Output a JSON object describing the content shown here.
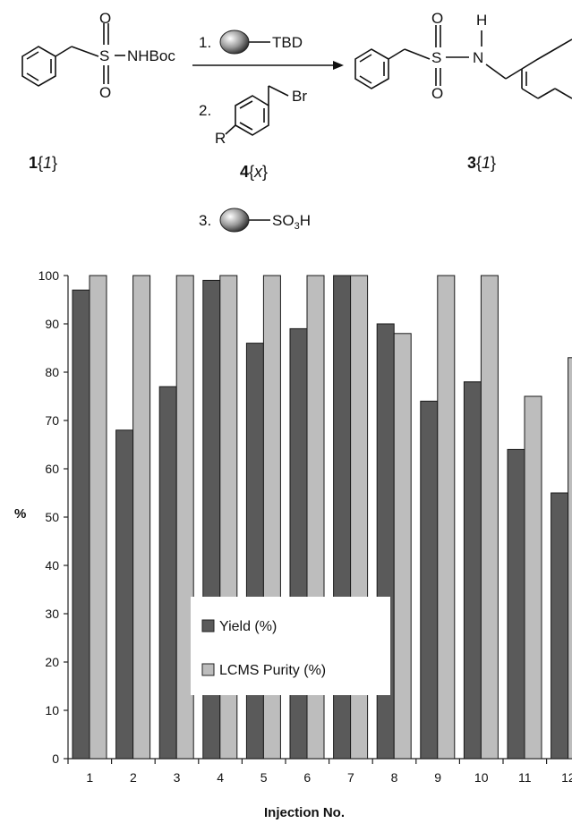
{
  "scheme": {
    "reactant_substituent": "NHBoc",
    "reactant_id_bold": "1",
    "reactant_id_italic": "1",
    "step1_number": "1.",
    "step1_reagent": "TBD",
    "step2_number": "2.",
    "step2_br": "Br",
    "step2_r": "R",
    "step2_id_bold": "4",
    "step2_id_italic": "x",
    "step3_number": "3.",
    "step3_reagent_main": "SO",
    "step3_reagent_sub": "3",
    "step3_reagent_end": "H",
    "product_id_bold": "3",
    "product_id_italic": "1",
    "atom_S": "S",
    "atom_O": "O",
    "atom_N": "N",
    "atom_H": "H"
  },
  "chart_data": {
    "type": "bar",
    "title": "",
    "xlabel": "Injection No.",
    "ylabel": "%",
    "ylim": [
      0,
      100
    ],
    "yticks": [
      0,
      10,
      20,
      30,
      40,
      50,
      60,
      70,
      80,
      90,
      100
    ],
    "categories": [
      "1",
      "2",
      "3",
      "4",
      "5",
      "6",
      "7",
      "8",
      "9",
      "10",
      "11",
      "12"
    ],
    "series": [
      {
        "name": "Yield (%)",
        "color": "#5a5a5a",
        "values": [
          97,
          68,
          77,
          99,
          86,
          89,
          100,
          90,
          74,
          78,
          64,
          55
        ]
      },
      {
        "name": "LCMS Purity (%)",
        "color": "#bdbdbd",
        "values": [
          100,
          100,
          100,
          100,
          100,
          100,
          100,
          88,
          100,
          100,
          75,
          83
        ]
      }
    ],
    "legend_position": "lower-center"
  }
}
